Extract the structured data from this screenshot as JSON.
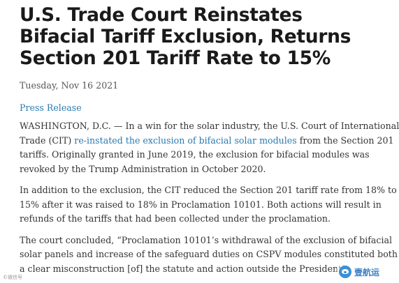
{
  "article": {
    "headline_lines": [
      "U.S. Trade Court Reinstates",
      "Bifacial Tariff Exclusion, Returns",
      "Section 201 Tariff Rate to 15%"
    ],
    "date": "Tuesday, Nov 16 2021",
    "category": "Press Release",
    "paragraph1": {
      "line1": "WASHINGTON, D.C. — In a win for the solar industry, the U.S. Court of International",
      "line2_pre": "Trade (CIT) ",
      "line2_link": "re-instated the exclusion of bifacial solar modules",
      "line2_post": " from the Section 201",
      "line3": "tariffs. Originally granted in June 2019, the exclusion for bifacial modules was",
      "line4": "revoked by the Trump Administration in October 2020."
    },
    "paragraph2_lines": [
      "In addition to the exclusion, the CIT reduced the Section 201 tariff rate from 18% to",
      "15% after it was raised to 18% in Proclamation 10101. Both actions will result in",
      "refunds of the tariffs that had been collected under the proclamation."
    ],
    "paragraph3_lines": [
      "The court concluded, “Proclamation 10101’s withdrawal of the exclusion of bifacial",
      "solar panels and increase of the safeguard duties on CSPV modules constituted both",
      "a clear misconstruction [of] the statute and action outside the President’s"
    ]
  },
  "watermark": {
    "icon": "bird-logo-icon",
    "text": "壹航运",
    "corner_text": "©微信号"
  },
  "colors": {
    "link": "#2a7ab0",
    "headline": "#1a1a1a",
    "body": "#333333"
  }
}
